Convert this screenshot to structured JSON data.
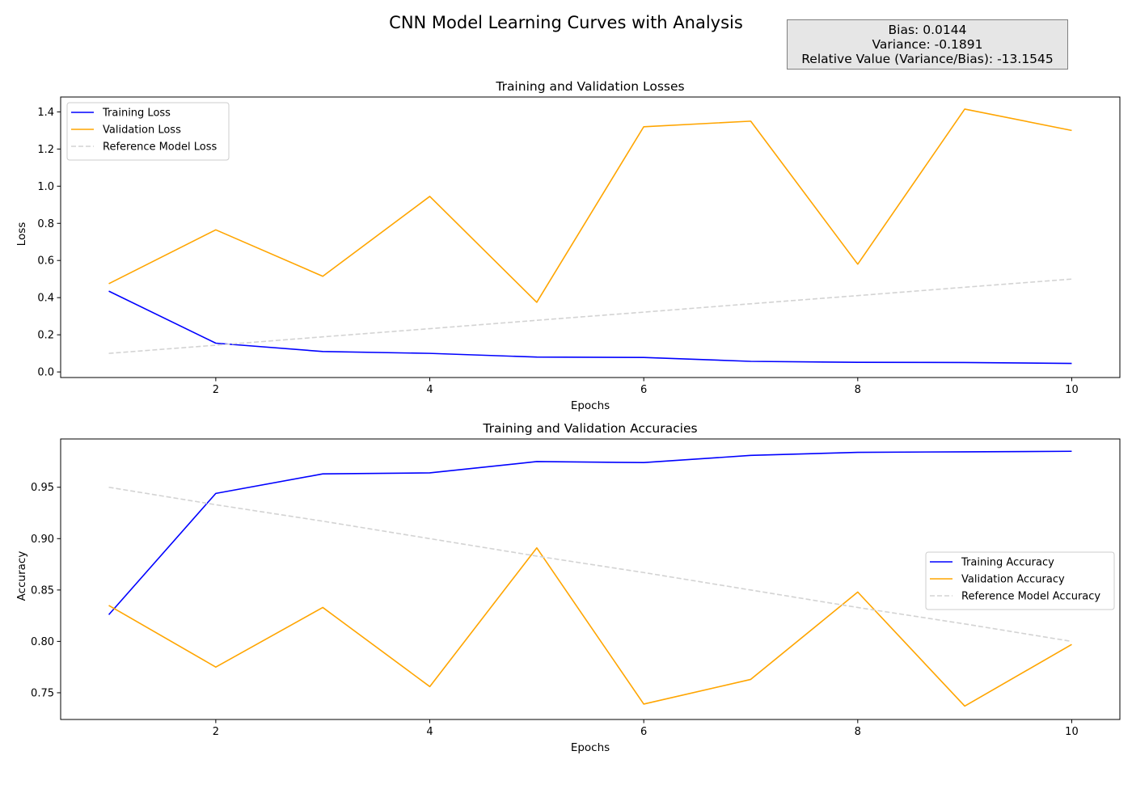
{
  "figure": {
    "title": "CNN Model Learning Curves with Analysis",
    "stats": {
      "bias": "Bias: 0.0144",
      "variance": "Variance: -0.1891",
      "relative": "Relative Value (Variance/Bias): -13.1545"
    }
  },
  "colors": {
    "training": "#0000ff",
    "validation": "#ffa500",
    "reference": "#d3d3d3"
  },
  "chart_data": [
    {
      "id": "loss",
      "type": "line",
      "title": "Training and Validation Losses",
      "xlabel": "Epochs",
      "ylabel": "Loss",
      "x": [
        1,
        2,
        3,
        4,
        5,
        6,
        7,
        8,
        9,
        10
      ],
      "xlim": [
        0.55,
        10.45
      ],
      "ylim": [
        -0.03,
        1.48
      ],
      "xticks": [
        2,
        4,
        6,
        8,
        10
      ],
      "yticks": [
        0.0,
        0.2,
        0.4,
        0.6,
        0.8,
        1.0,
        1.2,
        1.4
      ],
      "ytick_labels": [
        "0.0",
        "0.2",
        "0.4",
        "0.6",
        "0.8",
        "1.0",
        "1.2",
        "1.4"
      ],
      "grid": false,
      "legend_position": "upper left",
      "series": [
        {
          "name": "Training Loss",
          "color_key": "training",
          "dashed": false,
          "values": [
            0.435,
            0.155,
            0.11,
            0.1,
            0.08,
            0.078,
            0.057,
            0.052,
            0.051,
            0.046
          ]
        },
        {
          "name": "Validation Loss",
          "color_key": "validation",
          "dashed": false,
          "values": [
            0.475,
            0.765,
            0.515,
            0.945,
            0.375,
            1.32,
            1.35,
            0.58,
            1.415,
            1.3
          ]
        },
        {
          "name": "Reference Model Loss",
          "color_key": "reference",
          "dashed": true,
          "values": [
            0.1,
            0.144,
            0.189,
            0.233,
            0.278,
            0.322,
            0.367,
            0.411,
            0.456,
            0.5
          ]
        }
      ]
    },
    {
      "id": "acc",
      "type": "line",
      "title": "Training and Validation Accuracies",
      "xlabel": "Epochs",
      "ylabel": "Accuracy",
      "x": [
        1,
        2,
        3,
        4,
        5,
        6,
        7,
        8,
        9,
        10
      ],
      "xlim": [
        0.55,
        10.45
      ],
      "ylim": [
        0.724,
        0.997
      ],
      "xticks": [
        2,
        4,
        6,
        8,
        10
      ],
      "yticks": [
        0.75,
        0.8,
        0.85,
        0.9,
        0.95
      ],
      "ytick_labels": [
        "0.75",
        "0.80",
        "0.85",
        "0.90",
        "0.95"
      ],
      "grid": false,
      "legend_position": "center right",
      "series": [
        {
          "name": "Training Accuracy",
          "color_key": "training",
          "dashed": false,
          "values": [
            0.826,
            0.944,
            0.963,
            0.964,
            0.975,
            0.974,
            0.981,
            0.984,
            0.9845,
            0.985
          ]
        },
        {
          "name": "Validation Accuracy",
          "color_key": "validation",
          "dashed": false,
          "values": [
            0.835,
            0.775,
            0.833,
            0.756,
            0.891,
            0.739,
            0.763,
            0.848,
            0.737,
            0.797
          ]
        },
        {
          "name": "Reference Model Accuracy",
          "color_key": "reference",
          "dashed": true,
          "values": [
            0.95,
            0.933,
            0.917,
            0.9,
            0.883,
            0.867,
            0.85,
            0.833,
            0.817,
            0.8
          ]
        }
      ]
    }
  ]
}
